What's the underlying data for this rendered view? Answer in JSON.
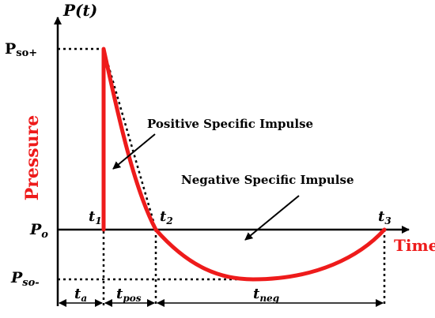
{
  "y_axis": {
    "label": "P(t)",
    "title": "Pressure"
  },
  "x_axis": {
    "label": "Time"
  },
  "pressure_levels": {
    "peak": {
      "main": "P",
      "sub": "so+"
    },
    "ambient": {
      "main": "P",
      "sub": "o"
    },
    "minimum": {
      "main": "P",
      "sub": "so-"
    }
  },
  "time_points": {
    "t1": {
      "main": "t",
      "sub": "1"
    },
    "t2": {
      "main": "t",
      "sub": "2"
    },
    "t3": {
      "main": "t",
      "sub": "3"
    }
  },
  "durations": {
    "arrival": {
      "main": "t",
      "sub": "a"
    },
    "positive": {
      "main": "t",
      "sub": "pos"
    },
    "negative": {
      "main": "t",
      "sub": "neg"
    }
  },
  "annotations": {
    "positive_impulse": "Positive Specific Impulse",
    "negative_impulse": "Negative Specific Impulse"
  },
  "colors": {
    "curve": "#ee1b1b",
    "axis": "#000000",
    "pressure_title": "#ee1b1b",
    "time_title": "#ee1b1b"
  }
}
